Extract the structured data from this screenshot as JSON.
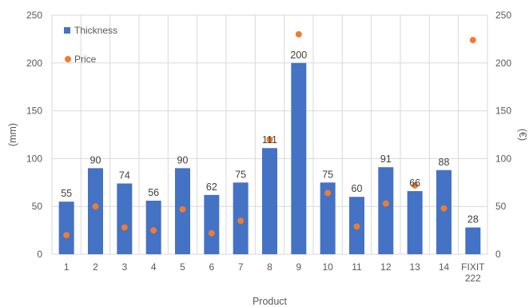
{
  "chart_data": {
    "type": "bar",
    "categories": [
      "1",
      "2",
      "3",
      "4",
      "5",
      "6",
      "7",
      "8",
      "9",
      "10",
      "11",
      "12",
      "13",
      "14",
      "FIXIT 222"
    ],
    "series": [
      {
        "name": "Thickness",
        "type": "bar",
        "axis": "left",
        "color": "#4472C4",
        "values": [
          55,
          90,
          74,
          56,
          90,
          62,
          75,
          111,
          200,
          75,
          60,
          91,
          66,
          88,
          28
        ],
        "data_labels": [
          "55",
          "90",
          "74",
          "56",
          "90",
          "62",
          "75",
          "111",
          "200",
          "75",
          "60",
          "91",
          "66",
          "88",
          "28"
        ]
      },
      {
        "name": "Price",
        "type": "scatter",
        "axis": "right",
        "color": "#ED7D31",
        "values": [
          20,
          50,
          28,
          25,
          47,
          22,
          35,
          120,
          230,
          64,
          29,
          53,
          72,
          48,
          224
        ]
      }
    ],
    "xlabel": "Product",
    "ylabel": "(mm)",
    "y2label": "(€)",
    "ylim": [
      0,
      250
    ],
    "y2lim": [
      0,
      250
    ],
    "yticks": [
      "0",
      "50",
      "100",
      "150",
      "200",
      "250"
    ],
    "y2ticks": [
      "0",
      "50",
      "100",
      "150",
      "200",
      "250"
    ],
    "grid": true,
    "legend_position": "top-left"
  }
}
